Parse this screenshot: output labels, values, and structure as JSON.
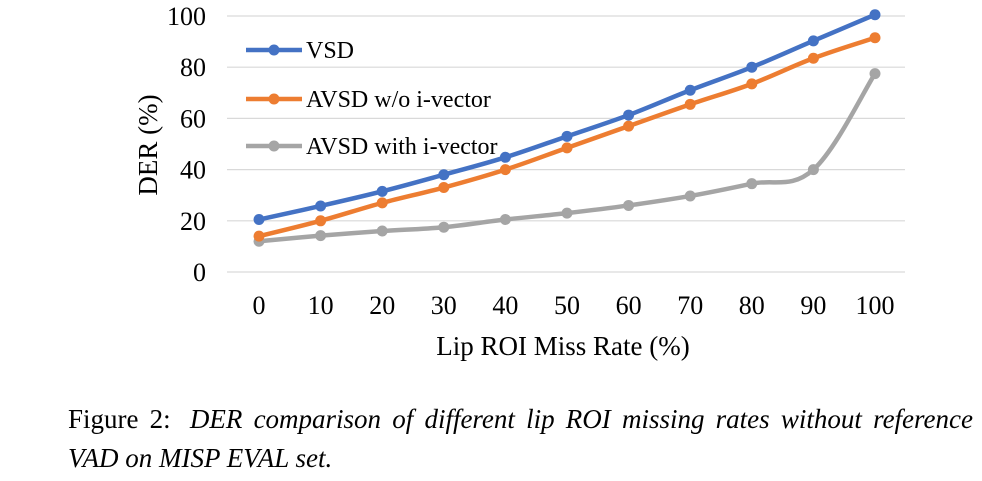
{
  "chart_data": {
    "type": "line",
    "title": "",
    "xlabel": "Lip ROI Miss Rate (%)",
    "ylabel": "DER (%)",
    "x": [
      0,
      10,
      20,
      30,
      40,
      50,
      60,
      70,
      80,
      90,
      100
    ],
    "x_tick_labels": [
      "0",
      "10",
      "20",
      "30",
      "40",
      "50",
      "60",
      "70",
      "80",
      "90",
      "100"
    ],
    "ylim": [
      0,
      100
    ],
    "y_ticks": [
      0,
      20,
      40,
      60,
      80,
      100
    ],
    "y_tick_labels": [
      "0",
      "20",
      "40",
      "60",
      "80",
      "100"
    ],
    "grid": "horizontal",
    "legend_position": "upper-left",
    "series": [
      {
        "name": "VSD",
        "color": "#4472c4",
        "values": [
          20.5,
          25.8,
          31.5,
          38,
          44.8,
          53,
          61.3,
          71,
          80,
          90.3,
          100.5
        ]
      },
      {
        "name": "AVSD w/o i-vector",
        "color": "#ed7d31",
        "values": [
          14,
          20,
          27,
          33,
          40,
          48.5,
          57,
          65.5,
          73.5,
          83.5,
          91.5
        ]
      },
      {
        "name": "AVSD with i-vector",
        "color": "#a5a5a5",
        "values": [
          12,
          14.2,
          16,
          17.5,
          20.5,
          23,
          26,
          29.7,
          34.5,
          40,
          77.5
        ]
      }
    ]
  },
  "caption": {
    "label": "Figure 2:",
    "text": "DER comparison of different lip ROI missing rates without reference VAD on MISP EVAL set."
  }
}
